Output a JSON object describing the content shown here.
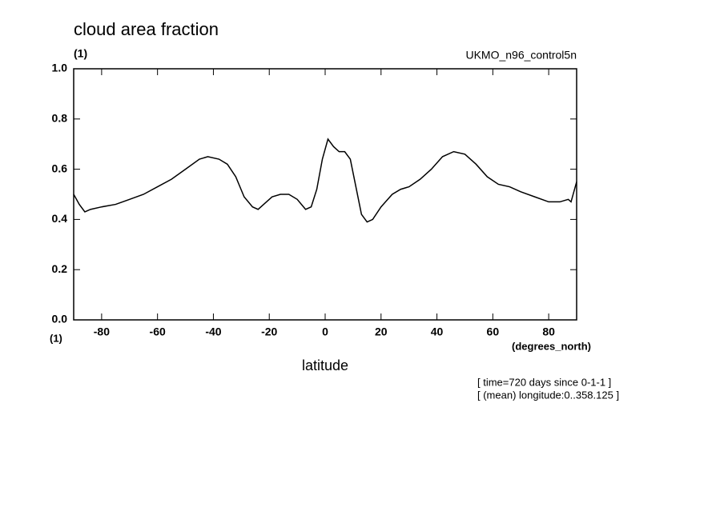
{
  "chart_data": {
    "type": "line",
    "title": "cloud area fraction",
    "y_units": "(1)",
    "x_units": "(1)",
    "model": "UKMO_n96_control5n",
    "xlabel": "latitude",
    "xlabel_units": "(degrees_north)",
    "notes": [
      "[ time=720 days since 0-1-1 ]",
      "[ (mean) longitude:0..358.125 ]"
    ],
    "x": [
      -90,
      -88,
      -86,
      -84,
      -80,
      -75,
      -70,
      -65,
      -60,
      -55,
      -50,
      -45,
      -42,
      -38,
      -35,
      -32,
      -29,
      -26,
      -24,
      -22,
      -19,
      -16,
      -13,
      -10,
      -7,
      -5,
      -3,
      -1,
      1,
      3,
      5,
      7,
      9,
      11,
      13,
      15,
      17,
      20,
      24,
      27,
      30,
      34,
      38,
      42,
      46,
      50,
      54,
      58,
      62,
      66,
      70,
      75,
      80,
      84,
      87,
      88,
      90
    ],
    "series": [
      {
        "name": "cloud area fraction",
        "color": "#000000",
        "values": [
          0.5,
          0.46,
          0.43,
          0.44,
          0.45,
          0.46,
          0.48,
          0.5,
          0.53,
          0.56,
          0.6,
          0.64,
          0.65,
          0.64,
          0.62,
          0.57,
          0.49,
          0.45,
          0.44,
          0.46,
          0.49,
          0.5,
          0.5,
          0.48,
          0.44,
          0.45,
          0.52,
          0.64,
          0.72,
          0.69,
          0.67,
          0.67,
          0.64,
          0.53,
          0.42,
          0.39,
          0.4,
          0.45,
          0.5,
          0.52,
          0.53,
          0.56,
          0.6,
          0.65,
          0.67,
          0.66,
          0.62,
          0.57,
          0.54,
          0.53,
          0.51,
          0.49,
          0.47,
          0.47,
          0.48,
          0.47,
          0.55
        ]
      }
    ],
    "xlim": [
      -90,
      90
    ],
    "xticks": [
      -80,
      -60,
      -40,
      -20,
      0,
      20,
      40,
      60,
      80
    ],
    "ylim": [
      0,
      1
    ],
    "yticks": [
      {
        "value": 0,
        "label": "0.0"
      },
      0.2,
      0.4,
      0.6,
      0.8,
      {
        "value": 1,
        "label": "1.0"
      }
    ]
  }
}
